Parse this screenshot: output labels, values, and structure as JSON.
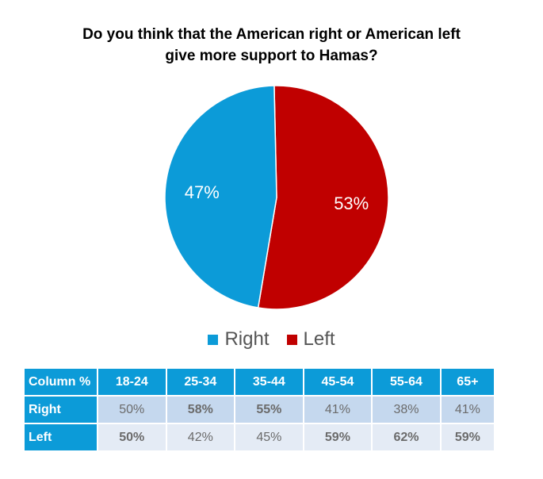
{
  "chart_data": [
    {
      "type": "pie",
      "title_lines": [
        "Do you think that the American right or American left",
        "give more support to Hamas?"
      ],
      "categories": [
        "Right",
        "Left"
      ],
      "values": [
        47,
        53
      ],
      "labels": [
        "47%",
        "53%"
      ],
      "colors": [
        "#0c9bd8",
        "#c00000"
      ],
      "legend_placement": "bottom"
    },
    {
      "type": "table",
      "header": [
        "Column %",
        "18-24",
        "25-34",
        "35-44",
        "45-54",
        "55-64",
        "65+"
      ],
      "rows": [
        {
          "label": "Right",
          "values": [
            "50%",
            "58%",
            "55%",
            "41%",
            "38%",
            "41%"
          ],
          "bold": [
            false,
            true,
            true,
            false,
            false,
            false
          ]
        },
        {
          "label": "Left",
          "values": [
            "50%",
            "42%",
            "45%",
            "59%",
            "62%",
            "59%"
          ],
          "bold": [
            true,
            false,
            false,
            true,
            true,
            true
          ]
        }
      ]
    }
  ]
}
